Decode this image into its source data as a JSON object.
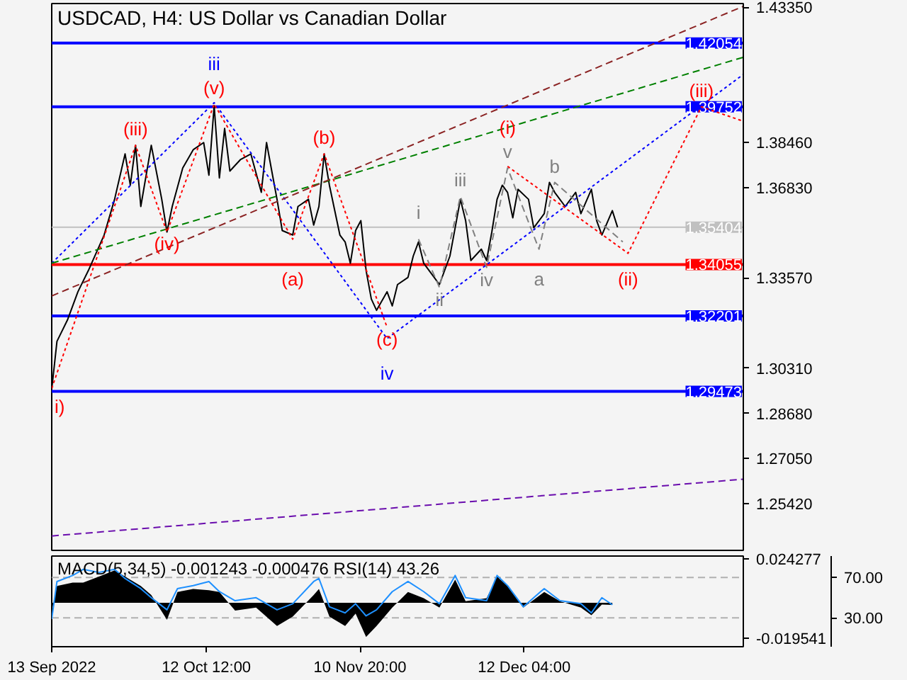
{
  "chart_data": [
    {
      "type": "line",
      "title": "USDCAD, H4:  US Dollar vs Canadian Dollar",
      "tick_labels": "y",
      "xlim": [
        "2022-09-13",
        "2023-01-23"
      ],
      "ylim": [
        1.2373,
        1.4348
      ],
      "yticks": [
        {
          "value": 1.4335,
          "label": "1.43350"
        },
        {
          "value": 1.3846,
          "label": "1.38460"
        },
        {
          "value": 1.3683,
          "label": "1.36830"
        },
        {
          "value": 1.3357,
          "label": "1.33570"
        },
        {
          "value": 1.3031,
          "label": "1.30310"
        },
        {
          "value": 1.2868,
          "label": "1.28680"
        },
        {
          "value": 1.2705,
          "label": "1.27050"
        },
        {
          "value": 1.2542,
          "label": "1.25420"
        }
      ],
      "series": [
        {
          "color": "#000000",
          "line_style": "solid",
          "x": [
            "2022-09-13",
            "2022-09-14",
            "2022-09-16",
            "2022-09-18",
            "2022-09-20",
            "2022-09-23",
            "2022-09-25",
            "2022-09-27",
            "2022-09-28",
            "2022-09-29",
            "2022-09-30",
            "2022-10-02",
            "2022-10-04",
            "2022-10-05",
            "2022-10-06",
            "2022-10-08",
            "2022-10-10",
            "2022-10-12",
            "2022-10-13",
            "2022-10-14",
            "2022-10-15",
            "2022-10-16",
            "2022-10-17",
            "2022-10-19",
            "2022-10-21",
            "2022-10-23",
            "2022-10-24",
            "2022-10-25",
            "2022-10-26",
            "2022-10-27",
            "2022-10-29",
            "2022-10-30",
            "2022-11-01",
            "2022-11-02",
            "2022-11-03",
            "2022-11-04",
            "2022-11-05",
            "2022-11-07",
            "2022-11-08",
            "2022-11-09",
            "2022-11-10",
            "2022-11-11",
            "2022-11-12",
            "2022-11-13",
            "2022-11-14",
            "2022-11-16",
            "2022-11-17",
            "2022-11-18",
            "2022-11-20",
            "2022-11-21",
            "2022-11-22",
            "2022-11-23",
            "2022-11-25",
            "2022-11-26",
            "2022-11-28",
            "2022-11-29",
            "2022-11-30",
            "2022-12-01",
            "2022-12-02",
            "2022-12-04",
            "2022-12-05",
            "2022-12-06",
            "2022-12-07",
            "2022-12-08",
            "2022-12-09",
            "2022-12-10",
            "2022-12-11",
            "2022-12-13",
            "2022-12-14",
            "2022-12-16",
            "2022-12-17",
            "2022-12-18",
            "2022-12-20",
            "2022-12-22",
            "2022-12-23",
            "2022-12-25",
            "2022-12-26",
            "2022-12-27",
            "2022-12-29",
            "2022-12-30"
          ],
          "values": [
            1.2955,
            1.3128,
            1.3205,
            1.3307,
            1.3384,
            1.3512,
            1.3641,
            1.3805,
            1.3692,
            1.3836,
            1.3615,
            1.3836,
            1.3641,
            1.3523,
            1.3615,
            1.3754,
            1.382,
            1.3846,
            1.3728,
            1.3979,
            1.3718,
            1.3897,
            1.3743,
            1.3784,
            1.3805,
            1.3666,
            1.3846,
            1.3743,
            1.3641,
            1.3528,
            1.3512,
            1.3615,
            1.3641,
            1.3548,
            1.3615,
            1.3805,
            1.3692,
            1.3512,
            1.3487,
            1.341,
            1.3528,
            1.3564,
            1.3384,
            1.3281,
            1.324,
            1.3307,
            1.3256,
            1.3333,
            1.3359,
            1.3436,
            1.3487,
            1.341,
            1.3359,
            1.3333,
            1.3436,
            1.3538,
            1.3641,
            1.3564,
            1.342,
            1.3461,
            1.342,
            1.3523,
            1.3641,
            1.3692,
            1.3666,
            1.3574,
            1.3677,
            1.3641,
            1.3538,
            1.3589,
            1.3702,
            1.3666,
            1.3615,
            1.3666,
            1.3589,
            1.3677,
            1.3564,
            1.3512,
            1.36,
            1.354
          ]
        },
        {
          "color": "#0000ff",
          "line_style": "dotted",
          "x": [
            "2022-09-13",
            "2022-10-14",
            "2022-11-16",
            "2023-01-23"
          ],
          "values": [
            1.341,
            1.399,
            1.3138,
            1.4092
          ]
        },
        {
          "color": "#008000",
          "line_style": "dashed",
          "x": [
            "2022-09-13",
            "2023-01-23"
          ],
          "values": [
            1.341,
            1.4154
          ]
        },
        {
          "color": "#8b2323",
          "line_style": "dashed",
          "x": [
            "2022-09-13",
            "2023-01-23"
          ],
          "values": [
            1.3292,
            1.4338
          ]
        },
        {
          "color": "#6a0dad",
          "line_style": "dashed",
          "x": [
            "2022-09-13",
            "2023-01-23"
          ],
          "values": [
            1.2425,
            1.263
          ]
        },
        {
          "color": "#ff0000",
          "line_style": "dotted",
          "x": [
            "2022-09-13",
            "2022-09-29",
            "2022-10-05",
            "2022-10-14",
            "2022-10-29",
            "2022-11-04",
            "2022-11-16"
          ],
          "values": [
            1.2958,
            1.3836,
            1.3523,
            1.3985,
            1.3497,
            1.3805,
            1.3179
          ]
        },
        {
          "color": "#ff0000",
          "line_style": "dotted",
          "x": [
            "2022-12-09",
            "2023-01-01",
            "2023-01-15",
            "2023-01-23"
          ],
          "values": [
            1.376,
            1.3446,
            1.3975,
            1.3923
          ]
        },
        {
          "color": "#808080",
          "line_style": "dashed",
          "x": [
            "2022-11-22",
            "2022-11-26",
            "2022-11-30",
            "2022-12-05",
            "2022-12-09",
            "2022-12-15",
            "2022-12-18",
            "2022-12-31"
          ],
          "values": [
            1.3497,
            1.3323,
            1.3651,
            1.3395,
            1.3754,
            1.3461,
            1.3702,
            1.3487
          ]
        }
      ],
      "ref_lines": [
        {
          "axis": "y",
          "value": 1.42054,
          "label": "1.42054",
          "color": "#0000ff",
          "line_style": "solid"
        },
        {
          "axis": "y",
          "value": 1.39752,
          "label": "1.39752",
          "color": "#0000ff",
          "line_style": "solid"
        },
        {
          "axis": "y",
          "value": 1.35404,
          "label": "1.35404",
          "color": "#c0c0c0",
          "line_style": "solid"
        },
        {
          "axis": "y",
          "value": 1.34055,
          "label": "1.34055",
          "color": "#ff0000",
          "line_style": "solid"
        },
        {
          "axis": "y",
          "value": 1.32201,
          "label": "1.32201",
          "color": "#0000ff",
          "line_style": "solid"
        },
        {
          "axis": "y",
          "value": 1.29473,
          "label": "1.29473",
          "color": "#0000ff",
          "line_style": "solid"
        }
      ],
      "annotations": [
        {
          "text": "iii",
          "x": "2022-10-14",
          "y": 1.399
        },
        {
          "text": "(v)",
          "x": "2022-10-14",
          "y": 1.3985
        },
        {
          "text": "(iii)",
          "x": "2022-09-29",
          "y": 1.3836
        },
        {
          "text": "(iv)",
          "x": "2022-10-05",
          "y": 1.3523
        },
        {
          "text": "(a)",
          "x": "2022-10-29",
          "y": 1.3497
        },
        {
          "text": "(b)",
          "x": "2022-11-04",
          "y": 1.3805
        },
        {
          "text": "(c)",
          "x": "2022-11-16",
          "y": 1.3179
        },
        {
          "text": "iv",
          "x": "2022-11-16",
          "y": 1.3138
        },
        {
          "text": "i)",
          "x": "2022-09-13",
          "y": 1.2958
        },
        {
          "text": "i",
          "x": "2022-11-22",
          "y": 1.3497
        },
        {
          "text": "ii",
          "x": "2022-11-26",
          "y": 1.3323
        },
        {
          "text": "iii",
          "x": "2022-11-30",
          "y": 1.3651
        },
        {
          "text": "iv",
          "x": "2022-12-05",
          "y": 1.3395
        },
        {
          "text": "(i)",
          "x": "2022-12-09",
          "y": 1.376
        },
        {
          "text": "v",
          "x": "2022-12-09",
          "y": 1.3754
        },
        {
          "text": "b",
          "x": "2022-12-18",
          "y": 1.3702
        },
        {
          "text": "a",
          "x": "2022-12-15",
          "y": 1.3461
        },
        {
          "text": "(ii)",
          "x": "2023-01-01",
          "y": 1.3446
        },
        {
          "text": "(iii)",
          "x": "2023-01-15",
          "y": 1.3975
        }
      ]
    },
    {
      "type": "line",
      "title": "MACD(5,34,5) -0.001243 -0.000476 RSI(14) 43.26",
      "xlim": [
        "2022-09-13",
        "2023-01-23"
      ],
      "xticks": [
        {
          "value": "2022-09-13T00:00",
          "label": "13 Sep 2022"
        },
        {
          "value": "2022-10-12T12:00",
          "label": "12 Oct 12:00"
        },
        {
          "value": "2022-11-10T20:00",
          "label": "10 Nov 20:00"
        },
        {
          "value": "2022-12-12T04:00",
          "label": "12 Dec 04:00"
        }
      ],
      "ylim": [
        -0.0244,
        0.026
      ],
      "yticks": [
        {
          "value": 0.024277,
          "label": "0.024277"
        },
        {
          "value": -0.019541,
          "label": "-0.019541"
        }
      ],
      "y2lim": [
        1.5,
        91.2
      ],
      "y2ticks": [
        {
          "value": 70,
          "label": "70.00"
        },
        {
          "value": 30,
          "label": "30.00"
        }
      ],
      "x": [
        "2022-09-13",
        "2022-09-14",
        "2022-09-17",
        "2022-09-19",
        "2022-09-22",
        "2022-09-25",
        "2022-09-27",
        "2022-09-30",
        "2022-10-02",
        "2022-10-05",
        "2022-10-07",
        "2022-10-10",
        "2022-10-13",
        "2022-10-15",
        "2022-10-18",
        "2022-10-22",
        "2022-10-26",
        "2022-10-29",
        "2022-11-02",
        "2022-11-03",
        "2022-11-05",
        "2022-11-08",
        "2022-11-10",
        "2022-11-12",
        "2022-11-14",
        "2022-11-17",
        "2022-11-20",
        "2022-11-23",
        "2022-11-26",
        "2022-11-29",
        "2022-12-01",
        "2022-12-05",
        "2022-12-07",
        "2022-12-09",
        "2022-12-12",
        "2022-12-16",
        "2022-12-19",
        "2022-12-23",
        "2022-12-25",
        "2022-12-27",
        "2022-12-29"
      ],
      "series": [
        {
          "type": "area",
          "color": "#000000",
          "values": [
            -0.005,
            0.0094,
            0.0112,
            0.0112,
            0.0146,
            0.018,
            0.0146,
            0.0094,
            0.0043,
            -0.0094,
            0.006,
            0.0077,
            0.007,
            0.006,
            -0.0043,
            -0.0026,
            -0.0129,
            -0.0077,
            0.0043,
            0.0077,
            -0.0077,
            -0.0129,
            -0.006,
            -0.019,
            -0.0129,
            -0.0026,
            0.006,
            0.0026,
            -0.0026,
            0.0129,
            0.0009,
            0.0026,
            0.0146,
            0.0094,
            -0.0026,
            0.006,
            0.0009,
            -0.0026,
            -0.0069,
            -0.001,
            -0.0012
          ]
        },
        {
          "type": "line",
          "axis": "y2",
          "color": "#1e90ff",
          "line_style": "solid",
          "values": [
            29,
            66,
            72,
            78,
            75,
            78,
            69,
            59,
            50,
            38,
            59,
            62,
            66,
            56,
            47,
            50,
            38,
            44,
            66,
            69,
            41,
            35,
            44,
            32,
            38,
            56,
            66,
            56,
            44,
            72,
            50,
            47,
            72,
            62,
            41,
            59,
            47,
            44,
            35,
            50,
            43
          ]
        }
      ],
      "ref_lines": [
        {
          "axis": "y2",
          "value": 70,
          "color": "#b0b0b0",
          "line_style": "dashed"
        },
        {
          "axis": "y2",
          "value": 30,
          "color": "#b0b0b0",
          "line_style": "dashed"
        }
      ]
    }
  ]
}
